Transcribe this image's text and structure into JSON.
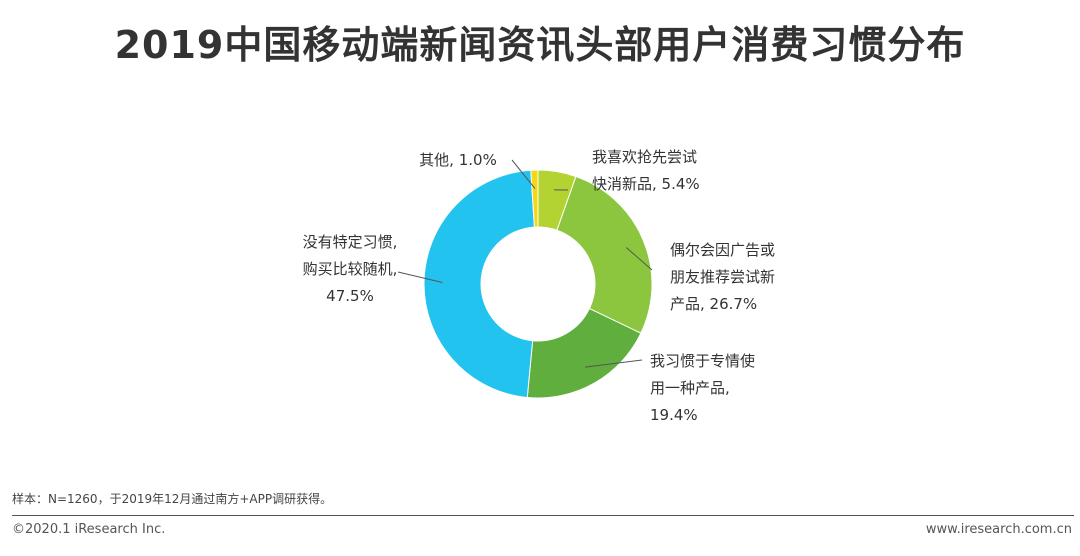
{
  "title": "2019中国移动端新闻资讯头部用户消费习惯分布",
  "chart_data": {
    "type": "pie",
    "subtype": "donut",
    "slices": [
      {
        "name": "我喜欢抢先尝试快消新品",
        "value": 5.4,
        "color": "#B3D333",
        "label_lines": [
          "我喜欢抢先尝试",
          "快消新品, 5.4%"
        ]
      },
      {
        "name": "偶尔会因广告或朋友推荐尝试新产品",
        "value": 26.7,
        "color": "#8CC63F",
        "label_lines": [
          "偶尔会因广告或",
          "朋友推荐尝试新",
          "产品, 26.7%"
        ]
      },
      {
        "name": "我习惯于专情使用一种产品",
        "value": 19.4,
        "color": "#5FAE3E",
        "label_lines": [
          "我习惯于专情使",
          "用一种产品,",
          "19.4%"
        ]
      },
      {
        "name": "没有特定习惯，购买比较随机",
        "value": 47.5,
        "color": "#22C3EE",
        "label_lines": [
          "没有特定习惯,",
          "购买比较随机,",
          "47.5%"
        ]
      },
      {
        "name": "其他",
        "value": 1.0,
        "color": "#F5D714",
        "label_lines": [
          "其他, 1.0%"
        ]
      }
    ]
  },
  "footer": {
    "note": "样本：N=1260，于2019年12月通过南方+APP调研获得。",
    "copyright": "©2020.1 iResearch Inc.",
    "website": "www.iresearch.com.cn"
  }
}
